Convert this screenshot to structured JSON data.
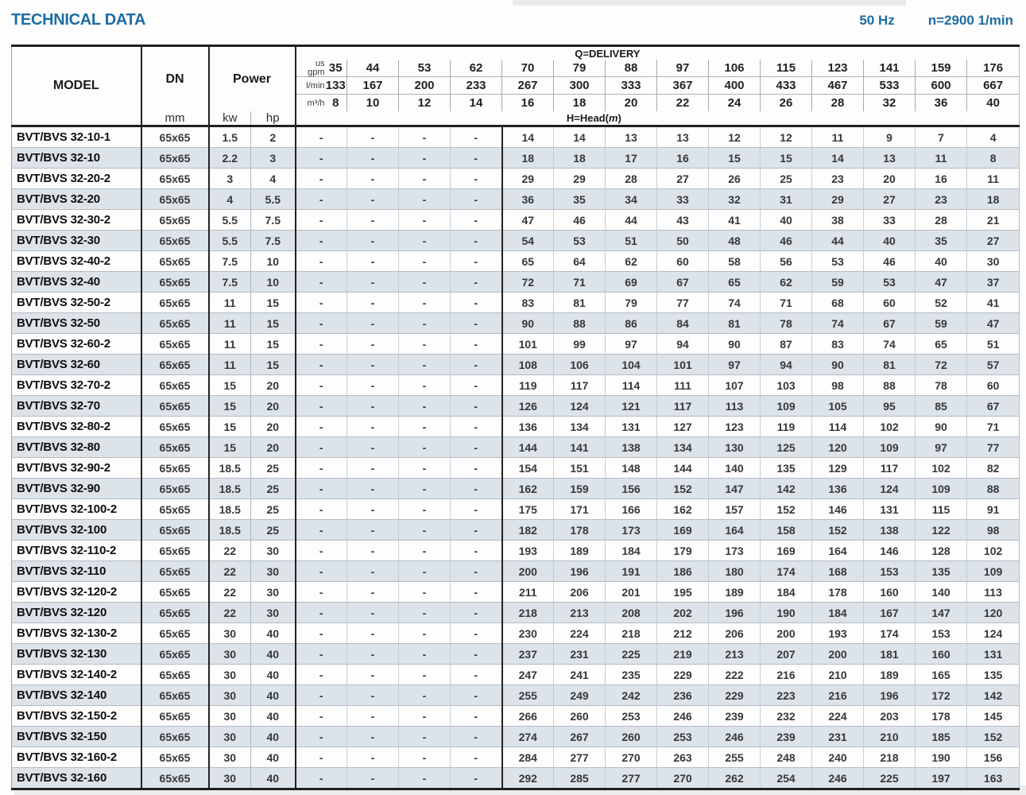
{
  "header": {
    "title": "TECHNICAL DATA",
    "frequency": "50 Hz",
    "speed": "n=2900 1/min"
  },
  "table": {
    "columns": {
      "model": "MODEL",
      "dn": "DN",
      "dn_unit": "mm",
      "power": "Power",
      "power_unit_kw": "kw",
      "power_unit_hp": "hp"
    },
    "delivery": {
      "label": "Q=DELIVERY",
      "units": {
        "us_gpm_line1": "us",
        "us_gpm_line2": "gpm",
        "l_min": "l/min",
        "m3_h": "m³/h"
      },
      "us_gpm": [
        "35",
        "44",
        "53",
        "62",
        "70",
        "79",
        "88",
        "97",
        "106",
        "115",
        "123",
        "141",
        "159",
        "176"
      ],
      "l_min": [
        "133",
        "167",
        "200",
        "233",
        "267",
        "300",
        "333",
        "367",
        "400",
        "433",
        "467",
        "533",
        "600",
        "667"
      ],
      "m3_h": [
        "8",
        "10",
        "12",
        "14",
        "16",
        "18",
        "20",
        "22",
        "24",
        "26",
        "28",
        "32",
        "36",
        "40"
      ]
    },
    "head_label": {
      "prefix": "H=Head(",
      "unit": "m",
      "suffix": ")"
    },
    "rows": [
      {
        "model": "BVT/BVS 32-10-1",
        "dn": "65x65",
        "kw": "1.5",
        "hp": "2",
        "heads": [
          "-",
          "-",
          "-",
          "-",
          "14",
          "14",
          "13",
          "13",
          "12",
          "12",
          "11",
          "9",
          "7",
          "4"
        ]
      },
      {
        "model": "BVT/BVS 32-10",
        "dn": "65x65",
        "kw": "2.2",
        "hp": "3",
        "heads": [
          "-",
          "-",
          "-",
          "-",
          "18",
          "18",
          "17",
          "16",
          "15",
          "15",
          "14",
          "13",
          "11",
          "8"
        ]
      },
      {
        "model": "BVT/BVS 32-20-2",
        "dn": "65x65",
        "kw": "3",
        "hp": "4",
        "heads": [
          "-",
          "-",
          "-",
          "-",
          "29",
          "29",
          "28",
          "27",
          "26",
          "25",
          "23",
          "20",
          "16",
          "11"
        ]
      },
      {
        "model": "BVT/BVS 32-20",
        "dn": "65x65",
        "kw": "4",
        "hp": "5.5",
        "heads": [
          "-",
          "-",
          "-",
          "-",
          "36",
          "35",
          "34",
          "33",
          "32",
          "31",
          "29",
          "27",
          "23",
          "18"
        ]
      },
      {
        "model": "BVT/BVS 32-30-2",
        "dn": "65x65",
        "kw": "5.5",
        "hp": "7.5",
        "heads": [
          "-",
          "-",
          "-",
          "-",
          "47",
          "46",
          "44",
          "43",
          "41",
          "40",
          "38",
          "33",
          "28",
          "21"
        ]
      },
      {
        "model": "BVT/BVS 32-30",
        "dn": "65x65",
        "kw": "5.5",
        "hp": "7.5",
        "heads": [
          "-",
          "-",
          "-",
          "-",
          "54",
          "53",
          "51",
          "50",
          "48",
          "46",
          "44",
          "40",
          "35",
          "27"
        ]
      },
      {
        "model": "BVT/BVS 32-40-2",
        "dn": "65x65",
        "kw": "7.5",
        "hp": "10",
        "heads": [
          "-",
          "-",
          "-",
          "-",
          "65",
          "64",
          "62",
          "60",
          "58",
          "56",
          "53",
          "46",
          "40",
          "30"
        ]
      },
      {
        "model": "BVT/BVS 32-40",
        "dn": "65x65",
        "kw": "7.5",
        "hp": "10",
        "heads": [
          "-",
          "-",
          "-",
          "-",
          "72",
          "71",
          "69",
          "67",
          "65",
          "62",
          "59",
          "53",
          "47",
          "37"
        ]
      },
      {
        "model": "BVT/BVS 32-50-2",
        "dn": "65x65",
        "kw": "11",
        "hp": "15",
        "heads": [
          "-",
          "-",
          "-",
          "-",
          "83",
          "81",
          "79",
          "77",
          "74",
          "71",
          "68",
          "60",
          "52",
          "41"
        ]
      },
      {
        "model": "BVT/BVS 32-50",
        "dn": "65x65",
        "kw": "11",
        "hp": "15",
        "heads": [
          "-",
          "-",
          "-",
          "-",
          "90",
          "88",
          "86",
          "84",
          "81",
          "78",
          "74",
          "67",
          "59",
          "47"
        ]
      },
      {
        "model": "BVT/BVS 32-60-2",
        "dn": "65x65",
        "kw": "11",
        "hp": "15",
        "heads": [
          "-",
          "-",
          "-",
          "-",
          "101",
          "99",
          "97",
          "94",
          "90",
          "87",
          "83",
          "74",
          "65",
          "51"
        ]
      },
      {
        "model": "BVT/BVS 32-60",
        "dn": "65x65",
        "kw": "11",
        "hp": "15",
        "heads": [
          "-",
          "-",
          "-",
          "-",
          "108",
          "106",
          "104",
          "101",
          "97",
          "94",
          "90",
          "81",
          "72",
          "57"
        ]
      },
      {
        "model": "BVT/BVS 32-70-2",
        "dn": "65x65",
        "kw": "15",
        "hp": "20",
        "heads": [
          "-",
          "-",
          "-",
          "-",
          "119",
          "117",
          "114",
          "111",
          "107",
          "103",
          "98",
          "88",
          "78",
          "60"
        ]
      },
      {
        "model": "BVT/BVS 32-70",
        "dn": "65x65",
        "kw": "15",
        "hp": "20",
        "heads": [
          "-",
          "-",
          "-",
          "-",
          "126",
          "124",
          "121",
          "117",
          "113",
          "109",
          "105",
          "95",
          "85",
          "67"
        ]
      },
      {
        "model": "BVT/BVS 32-80-2",
        "dn": "65x65",
        "kw": "15",
        "hp": "20",
        "heads": [
          "-",
          "-",
          "-",
          "-",
          "136",
          "134",
          "131",
          "127",
          "123",
          "119",
          "114",
          "102",
          "90",
          "71"
        ]
      },
      {
        "model": "BVT/BVS 32-80",
        "dn": "65x65",
        "kw": "15",
        "hp": "20",
        "heads": [
          "-",
          "-",
          "-",
          "-",
          "144",
          "141",
          "138",
          "134",
          "130",
          "125",
          "120",
          "109",
          "97",
          "77"
        ]
      },
      {
        "model": "BVT/BVS 32-90-2",
        "dn": "65x65",
        "kw": "18.5",
        "hp": "25",
        "heads": [
          "-",
          "-",
          "-",
          "-",
          "154",
          "151",
          "148",
          "144",
          "140",
          "135",
          "129",
          "117",
          "102",
          "82"
        ]
      },
      {
        "model": "BVT/BVS 32-90",
        "dn": "65x65",
        "kw": "18.5",
        "hp": "25",
        "heads": [
          "-",
          "-",
          "-",
          "-",
          "162",
          "159",
          "156",
          "152",
          "147",
          "142",
          "136",
          "124",
          "109",
          "88"
        ]
      },
      {
        "model": "BVT/BVS 32-100-2",
        "dn": "65x65",
        "kw": "18.5",
        "hp": "25",
        "heads": [
          "-",
          "-",
          "-",
          "-",
          "175",
          "171",
          "166",
          "162",
          "157",
          "152",
          "146",
          "131",
          "115",
          "91"
        ]
      },
      {
        "model": "BVT/BVS 32-100",
        "dn": "65x65",
        "kw": "18.5",
        "hp": "25",
        "heads": [
          "-",
          "-",
          "-",
          "-",
          "182",
          "178",
          "173",
          "169",
          "164",
          "158",
          "152",
          "138",
          "122",
          "98"
        ]
      },
      {
        "model": "BVT/BVS 32-110-2",
        "dn": "65x65",
        "kw": "22",
        "hp": "30",
        "heads": [
          "-",
          "-",
          "-",
          "-",
          "193",
          "189",
          "184",
          "179",
          "173",
          "169",
          "164",
          "146",
          "128",
          "102"
        ]
      },
      {
        "model": "BVT/BVS 32-110",
        "dn": "65x65",
        "kw": "22",
        "hp": "30",
        "heads": [
          "-",
          "-",
          "-",
          "-",
          "200",
          "196",
          "191",
          "186",
          "180",
          "174",
          "168",
          "153",
          "135",
          "109"
        ]
      },
      {
        "model": "BVT/BVS 32-120-2",
        "dn": "65x65",
        "kw": "22",
        "hp": "30",
        "heads": [
          "-",
          "-",
          "-",
          "-",
          "211",
          "206",
          "201",
          "195",
          "189",
          "184",
          "178",
          "160",
          "140",
          "113"
        ]
      },
      {
        "model": "BVT/BVS 32-120",
        "dn": "65x65",
        "kw": "22",
        "hp": "30",
        "heads": [
          "-",
          "-",
          "-",
          "-",
          "218",
          "213",
          "208",
          "202",
          "196",
          "190",
          "184",
          "167",
          "147",
          "120"
        ]
      },
      {
        "model": "BVT/BVS 32-130-2",
        "dn": "65x65",
        "kw": "30",
        "hp": "40",
        "heads": [
          "-",
          "-",
          "-",
          "-",
          "230",
          "224",
          "218",
          "212",
          "206",
          "200",
          "193",
          "174",
          "153",
          "124"
        ]
      },
      {
        "model": "BVT/BVS 32-130",
        "dn": "65x65",
        "kw": "30",
        "hp": "40",
        "heads": [
          "-",
          "-",
          "-",
          "-",
          "237",
          "231",
          "225",
          "219",
          "213",
          "207",
          "200",
          "181",
          "160",
          "131"
        ]
      },
      {
        "model": "BVT/BVS 32-140-2",
        "dn": "65x65",
        "kw": "30",
        "hp": "40",
        "heads": [
          "-",
          "-",
          "-",
          "-",
          "247",
          "241",
          "235",
          "229",
          "222",
          "216",
          "210",
          "189",
          "165",
          "135"
        ]
      },
      {
        "model": "BVT/BVS 32-140",
        "dn": "65x65",
        "kw": "30",
        "hp": "40",
        "heads": [
          "-",
          "-",
          "-",
          "-",
          "255",
          "249",
          "242",
          "236",
          "229",
          "223",
          "216",
          "196",
          "172",
          "142"
        ]
      },
      {
        "model": "BVT/BVS 32-150-2",
        "dn": "65x65",
        "kw": "30",
        "hp": "40",
        "heads": [
          "-",
          "-",
          "-",
          "-",
          "266",
          "260",
          "253",
          "246",
          "239",
          "232",
          "224",
          "203",
          "178",
          "145"
        ]
      },
      {
        "model": "BVT/BVS 32-150",
        "dn": "65x65",
        "kw": "30",
        "hp": "40",
        "heads": [
          "-",
          "-",
          "-",
          "-",
          "274",
          "267",
          "260",
          "253",
          "246",
          "239",
          "231",
          "210",
          "185",
          "152"
        ]
      },
      {
        "model": "BVT/BVS 32-160-2",
        "dn": "65x65",
        "kw": "30",
        "hp": "40",
        "heads": [
          "-",
          "-",
          "-",
          "-",
          "284",
          "277",
          "270",
          "263",
          "255",
          "248",
          "240",
          "218",
          "190",
          "156"
        ]
      },
      {
        "model": "BVT/BVS 32-160",
        "dn": "65x65",
        "kw": "30",
        "hp": "40",
        "heads": [
          "-",
          "-",
          "-",
          "-",
          "292",
          "285",
          "277",
          "270",
          "262",
          "254",
          "246",
          "225",
          "197",
          "163"
        ]
      }
    ]
  }
}
